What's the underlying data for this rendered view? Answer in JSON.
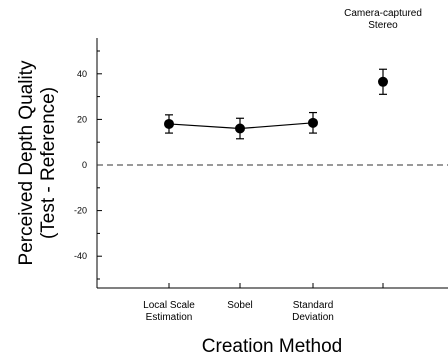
{
  "chart_data": {
    "type": "scatter",
    "xlabel": "Creation Method",
    "ylabel_lines": [
      "Perceived Depth Quality",
      "(Test - Reference)"
    ],
    "ylim": [
      -55,
      55
    ],
    "yticks": [
      -40,
      -20,
      0,
      20,
      40
    ],
    "categories": [
      [
        "Local Scale",
        "Estimation"
      ],
      [
        "Sobel"
      ],
      [
        "Standard",
        "Deviation"
      ],
      []
    ],
    "points": [
      {
        "category_index": 0,
        "value": 18,
        "error_low": 14,
        "error_high": 22
      },
      {
        "category_index": 1,
        "value": 16,
        "error_low": 11.5,
        "error_high": 20.5
      },
      {
        "category_index": 2,
        "value": 18.5,
        "error_low": 14,
        "error_high": 23
      },
      {
        "category_index": 3,
        "value": 36.5,
        "error_low": 31,
        "error_high": 42
      }
    ],
    "connected_indices": [
      0,
      1,
      2
    ],
    "reference_line": {
      "y": 0,
      "style": "dashed"
    },
    "annotations": [
      {
        "category_index": 3,
        "lines": [
          "Camera-captured",
          "Stereo"
        ]
      }
    ],
    "grid": false,
    "legend": "none"
  }
}
